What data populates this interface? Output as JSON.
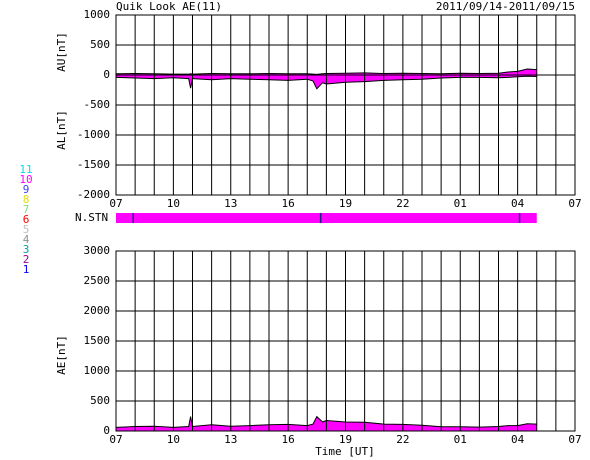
{
  "chart_data": [
    {
      "type": "area",
      "title": "Quik Look AE(11)",
      "subtitle": "2011/09/14-2011/09/15",
      "ylabels": [
        "AU[nT]",
        "AL[nT]"
      ],
      "x": [
        0,
        1,
        2,
        3,
        3.8,
        3.9,
        4.0,
        5,
        6,
        7,
        8,
        9,
        10,
        10.3,
        10.5,
        10.8,
        11,
        12,
        13,
        14,
        15,
        16,
        17,
        18,
        19,
        20,
        20.5,
        21,
        21.5,
        22
      ],
      "series": [
        {
          "color": "#ff00ff",
          "values": [
            20,
            25,
            20,
            15,
            15,
            20,
            15,
            25,
            20,
            20,
            25,
            20,
            20,
            15,
            10,
            20,
            25,
            30,
            35,
            25,
            30,
            25,
            20,
            30,
            25,
            30,
            50,
            60,
            100,
            90
          ]
        },
        {
          "color": "#ff00ff",
          "values": [
            -40,
            -50,
            -60,
            -45,
            -60,
            -220,
            -60,
            -80,
            -60,
            -70,
            -80,
            -90,
            -70,
            -100,
            -230,
            -130,
            -150,
            -120,
            -110,
            -90,
            -80,
            -70,
            -50,
            -40,
            -40,
            -45,
            -40,
            -30,
            -20,
            -25
          ]
        }
      ],
      "xlim": [
        0,
        24
      ],
      "xticks": [
        {
          "value": 0,
          "label": "07"
        },
        {
          "value": 3,
          "label": "10"
        },
        {
          "value": 6,
          "label": "13"
        },
        {
          "value": 9,
          "label": "16"
        },
        {
          "value": 12,
          "label": "19"
        },
        {
          "value": 15,
          "label": "22"
        },
        {
          "value": 18,
          "label": "01"
        },
        {
          "value": 21,
          "label": "04"
        },
        {
          "value": 24,
          "label": "07"
        }
      ],
      "x_grid": [
        0,
        1,
        2,
        3,
        4,
        5,
        6,
        7,
        8,
        9,
        10,
        11,
        12,
        13,
        14,
        15,
        16,
        17,
        18,
        19,
        20,
        21,
        22,
        23,
        24
      ],
      "ylim": [
        -2000,
        1000
      ],
      "yticks": [
        1000,
        500,
        0,
        -500,
        -1000,
        -1500,
        -2000
      ]
    },
    {
      "type": "area",
      "ylabels": [
        "AE[nT]"
      ],
      "xlabel": "Time [UT]",
      "x": [
        0,
        1,
        2,
        3,
        3.8,
        3.9,
        4.0,
        5,
        6,
        7,
        8,
        9,
        10,
        10.3,
        10.5,
        10.8,
        11,
        12,
        13,
        14,
        15,
        16,
        17,
        18,
        19,
        20,
        20.5,
        21,
        21.5,
        22
      ],
      "series": [
        {
          "color": "#ff00ff",
          "values": [
            60,
            75,
            80,
            60,
            75,
            240,
            75,
            105,
            80,
            90,
            105,
            110,
            90,
            115,
            240,
            150,
            175,
            150,
            145,
            115,
            110,
            95,
            70,
            70,
            65,
            75,
            90,
            90,
            120,
            115
          ]
        }
      ],
      "xlim": [
        0,
        24
      ],
      "xticks": [
        {
          "value": 0,
          "label": "07"
        },
        {
          "value": 3,
          "label": "10"
        },
        {
          "value": 6,
          "label": "13"
        },
        {
          "value": 9,
          "label": "16"
        },
        {
          "value": 12,
          "label": "19"
        },
        {
          "value": 15,
          "label": "22"
        },
        {
          "value": 18,
          "label": "01"
        },
        {
          "value": 21,
          "label": "04"
        },
        {
          "value": 24,
          "label": "07"
        }
      ],
      "x_grid": [
        0,
        1,
        2,
        3,
        4,
        5,
        6,
        7,
        8,
        9,
        10,
        11,
        12,
        13,
        14,
        15,
        16,
        17,
        18,
        19,
        20,
        21,
        22,
        23,
        24
      ],
      "ylim": [
        0,
        3000
      ],
      "yticks": [
        3000,
        2500,
        2000,
        1500,
        1000,
        500,
        0
      ]
    }
  ],
  "station_bar": {
    "label": "N.STN",
    "span": [
      0,
      22
    ],
    "markers": [
      0.9,
      10.7,
      21.1
    ],
    "color": "#ff00ff"
  },
  "station_legend": [
    {
      "label": "11",
      "color": "#00e0e0"
    },
    {
      "label": "10",
      "color": "#ff00ff"
    },
    {
      "label": "9",
      "color": "#4040ff"
    },
    {
      "label": "8",
      "color": "#e0e000"
    },
    {
      "label": "7",
      "color": "#80e080"
    },
    {
      "label": "6",
      "color": "#ff0000"
    },
    {
      "label": "5",
      "color": "#c0c0c0"
    },
    {
      "label": "4",
      "color": "#909090"
    },
    {
      "label": "3",
      "color": "#00a0a0"
    },
    {
      "label": "2",
      "color": "#a000a0"
    },
    {
      "label": "1",
      "color": "#0000ff"
    }
  ]
}
